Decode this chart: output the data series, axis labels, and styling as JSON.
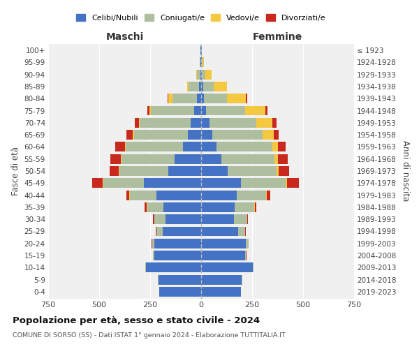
{
  "age_groups": [
    "0-4",
    "5-9",
    "10-14",
    "15-19",
    "20-24",
    "25-29",
    "30-34",
    "35-39",
    "40-44",
    "45-49",
    "50-54",
    "55-59",
    "60-64",
    "65-69",
    "70-74",
    "75-79",
    "80-84",
    "85-89",
    "90-94",
    "95-99",
    "100+"
  ],
  "birth_years": [
    "2019-2023",
    "2014-2018",
    "2009-2013",
    "2004-2008",
    "1999-2003",
    "1994-1998",
    "1989-1993",
    "1984-1988",
    "1979-1983",
    "1974-1978",
    "1969-1973",
    "1964-1968",
    "1959-1963",
    "1954-1958",
    "1949-1953",
    "1944-1948",
    "1939-1943",
    "1934-1938",
    "1929-1933",
    "1924-1928",
    "≤ 1923"
  ],
  "maschi": {
    "celibi": [
      205,
      210,
      270,
      230,
      230,
      190,
      175,
      185,
      220,
      280,
      160,
      130,
      90,
      65,
      50,
      35,
      20,
      10,
      5,
      2,
      2
    ],
    "coniugati": [
      1,
      2,
      3,
      5,
      10,
      30,
      55,
      80,
      130,
      200,
      240,
      260,
      280,
      265,
      250,
      210,
      120,
      50,
      15,
      5,
      2
    ],
    "vedovi": [
      0,
      0,
      0,
      0,
      0,
      0,
      1,
      1,
      2,
      3,
      5,
      5,
      5,
      5,
      5,
      10,
      20,
      10,
      5,
      0,
      0
    ],
    "divorziati": [
      0,
      0,
      0,
      1,
      2,
      3,
      5,
      10,
      15,
      50,
      45,
      50,
      45,
      30,
      20,
      10,
      5,
      0,
      0,
      0,
      0
    ]
  },
  "femmine": {
    "nubili": [
      195,
      200,
      255,
      215,
      220,
      180,
      160,
      165,
      175,
      195,
      130,
      100,
      75,
      55,
      40,
      25,
      15,
      10,
      5,
      3,
      2
    ],
    "coniugate": [
      1,
      1,
      3,
      5,
      12,
      35,
      65,
      95,
      145,
      220,
      240,
      260,
      275,
      245,
      230,
      190,
      110,
      50,
      15,
      5,
      2
    ],
    "vedove": [
      0,
      0,
      0,
      0,
      0,
      1,
      1,
      2,
      3,
      5,
      10,
      15,
      25,
      55,
      80,
      100,
      95,
      65,
      30,
      5,
      1
    ],
    "divorziate": [
      0,
      0,
      0,
      1,
      1,
      3,
      5,
      10,
      15,
      60,
      50,
      50,
      40,
      25,
      20,
      10,
      5,
      0,
      0,
      0,
      0
    ]
  },
  "colors": {
    "celibi_nubili": "#4472C4",
    "coniugati": "#AEBF9F",
    "vedovi": "#F5C842",
    "divorziati": "#C8281E"
  },
  "title": "Popolazione per età, sesso e stato civile - 2024",
  "subtitle": "COMUNE DI SORSO (SS) - Dati ISTAT 1° gennaio 2024 - Elaborazione TUTTITALIA.IT",
  "xlabel_left": "Maschi",
  "xlabel_right": "Femmine",
  "ylabel_left": "Fasce di età",
  "ylabel_right": "Anni di nascita",
  "xlim": 750,
  "bg_color": "#FFFFFF",
  "plot_bg": "#F0F0F0",
  "grid_color": "#CCCCCC",
  "legend_labels": [
    "Celibi/Nubili",
    "Coniugati/e",
    "Vedovi/e",
    "Divorziati/e"
  ]
}
